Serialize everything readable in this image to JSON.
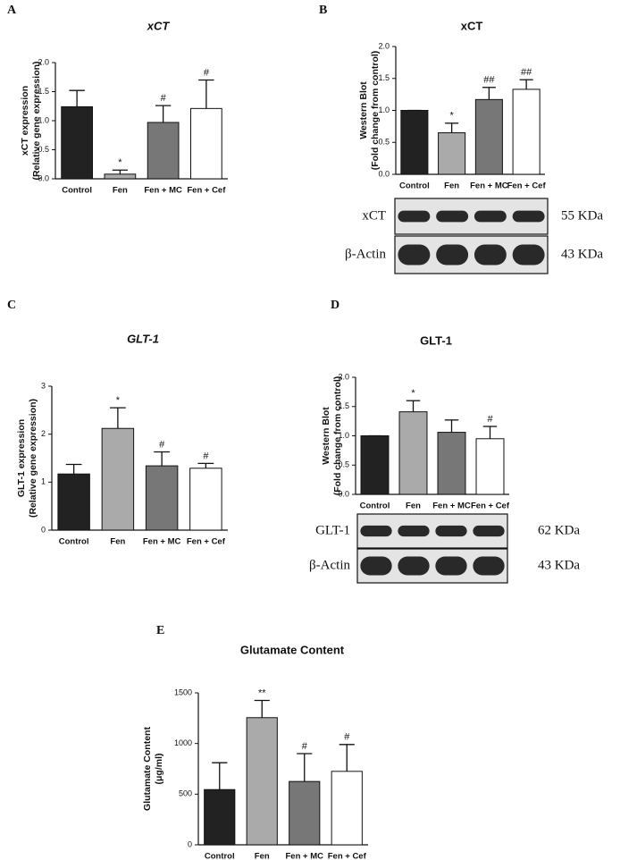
{
  "chart_data": [
    {
      "panel": "A",
      "type": "bar",
      "title": "xCT",
      "title_style": "italic",
      "ylabel": [
        "xCT expression",
        "(Relative gene expression)"
      ],
      "categories": [
        "Control",
        "Fen",
        "Fen + MC",
        "Fen + Cef"
      ],
      "values": [
        1.24,
        0.08,
        0.97,
        1.21
      ],
      "errors": [
        0.28,
        0.07,
        0.29,
        0.49
      ],
      "annotations": [
        null,
        "*",
        "#",
        "#"
      ],
      "colors": [
        "#222222",
        "#aaaaaa",
        "#777777",
        "#ffffff"
      ],
      "ylim": [
        0,
        2
      ],
      "yticks": [
        {
          "value": 0,
          "label": "0.0"
        },
        0.5,
        {
          "value": 1,
          "label": "1.0"
        },
        1.5,
        {
          "value": 2,
          "label": "2.0"
        }
      ]
    },
    {
      "panel": "B",
      "type": "bar",
      "title": "xCT",
      "title_style": "normal",
      "ylabel": [
        "Western Blot",
        "(Fold change from control)"
      ],
      "categories": [
        "Control",
        "Fen",
        "Fen + MC",
        "Fen + Cef"
      ],
      "values": [
        1.0,
        0.65,
        1.17,
        1.33
      ],
      "errors": [
        0,
        0.15,
        0.19,
        0.15
      ],
      "annotations": [
        null,
        "*",
        "##",
        "##"
      ],
      "colors": [
        "#222222",
        "#aaaaaa",
        "#777777",
        "#ffffff"
      ],
      "ylim": [
        0,
        2
      ],
      "yticks": [
        {
          "value": 0,
          "label": "0.0"
        },
        0.5,
        {
          "value": 1,
          "label": "1.0"
        },
        1.5,
        {
          "value": 2,
          "label": "2.0"
        }
      ],
      "blot": [
        {
          "label": "xCT",
          "size": "55 KDa"
        },
        {
          "label": "β-Actin",
          "size": "43 KDa"
        }
      ]
    },
    {
      "panel": "C",
      "type": "bar",
      "title": "GLT-1",
      "title_style": "italic",
      "ylabel": [
        "GLT-1 expression",
        "(Relative gene expression)"
      ],
      "categories": [
        "Control",
        "Fen",
        "Fen + MC",
        "Fen + Cef"
      ],
      "values": [
        1.17,
        2.12,
        1.34,
        1.29
      ],
      "errors": [
        0.2,
        0.43,
        0.29,
        0.1
      ],
      "annotations": [
        null,
        "*",
        "#",
        "#"
      ],
      "colors": [
        "#222222",
        "#aaaaaa",
        "#777777",
        "#ffffff"
      ],
      "ylim": [
        0,
        3
      ],
      "yticks": [
        0,
        1,
        2,
        3
      ]
    },
    {
      "panel": "D",
      "type": "bar",
      "title": "GLT-1",
      "title_style": "normal",
      "ylabel": [
        "Western Blot",
        "(Fold change from control)"
      ],
      "categories": [
        "Control",
        "Fen",
        "Fen + MC",
        "Fen + Cef"
      ],
      "values": [
        1.0,
        1.41,
        1.06,
        0.95
      ],
      "errors": [
        0,
        0.19,
        0.21,
        0.21
      ],
      "annotations": [
        null,
        "*",
        null,
        "#"
      ],
      "colors": [
        "#222222",
        "#aaaaaa",
        "#777777",
        "#ffffff"
      ],
      "ylim": [
        0,
        2
      ],
      "yticks": [
        {
          "value": 0,
          "label": "0.0"
        },
        0.5,
        {
          "value": 1,
          "label": "1.0"
        },
        1.5,
        {
          "value": 2,
          "label": "2.0"
        }
      ],
      "blot": [
        {
          "label": "GLT-1",
          "size": "62 KDa"
        },
        {
          "label": "β-Actin",
          "size": "43 KDa"
        }
      ]
    },
    {
      "panel": "E",
      "type": "bar",
      "title": "Glutamate Content",
      "title_style": "normal",
      "ylabel": [
        "Glutamate Content",
        "(μg/ml)"
      ],
      "categories": [
        "Control",
        "Fen",
        "Fen + MC",
        "Fen + Cef"
      ],
      "values": [
        545,
        1255,
        625,
        725
      ],
      "errors": [
        265,
        170,
        275,
        265
      ],
      "annotations": [
        null,
        "**",
        "#",
        "#"
      ],
      "colors": [
        "#222222",
        "#aaaaaa",
        "#777777",
        "#ffffff"
      ],
      "ylim": [
        0,
        1500
      ],
      "yticks": [
        0,
        500,
        1000,
        1500
      ]
    }
  ]
}
